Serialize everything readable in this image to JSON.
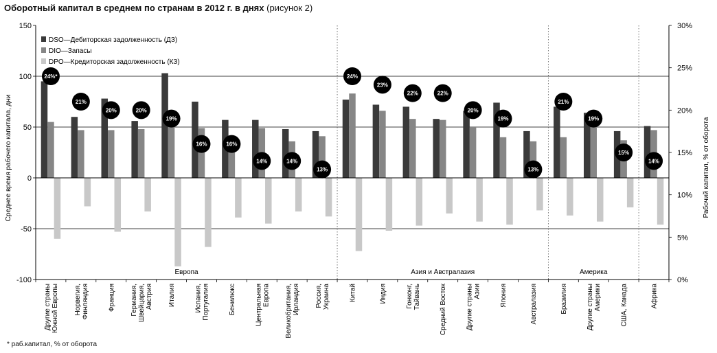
{
  "title": "Оборотный капитал в среднем по странам в 2012 г. в днях",
  "title_note": "(рисунок 2)",
  "footnote": "* раб.капитал, % от оборота",
  "chart_data": {
    "type": "bar",
    "ylabel": "Среднее время рабочего капитала, дни",
    "y2label": "Рабочий капитал, % от оборота",
    "ylim": [
      -100,
      150
    ],
    "yticks": [
      -100,
      -50,
      0,
      50,
      100,
      150
    ],
    "y2lim": [
      0,
      30
    ],
    "y2ticks": [
      "0%",
      "5%",
      "10%",
      "15%",
      "20%",
      "25%",
      "30%"
    ],
    "grid": "horizontal at 100, 50 and -50",
    "legend_position": "top-left",
    "categories": [
      "Другие страны Южной Европы",
      "Норвегия, Финляндия",
      "Франция",
      "Германия, Швейцария, Австрия",
      "Италия",
      "Испания, Португалия",
      "Бенилюкс",
      "Центральная Европа",
      "Великобритания, Ирландия",
      "Россия, Украина",
      "Китай",
      "Индия",
      "Гонконг, Тайвань",
      "Средний Восток",
      "Другие страны Азии",
      "Япония",
      "Австралазия",
      "Бразилия",
      "Другие страны Америки",
      "США, Канада",
      "Африка"
    ],
    "series": [
      {
        "name": "DSO—Дебиторская задолженность (ДЗ)",
        "color": "#3a3a3a",
        "values": [
          95,
          60,
          78,
          56,
          103,
          75,
          57,
          57,
          48,
          46,
          77,
          72,
          70,
          58,
          66,
          74,
          46,
          70,
          64,
          46,
          51
        ]
      },
      {
        "name": "DIO—Запасы",
        "color": "#868686",
        "values": [
          55,
          47,
          47,
          48,
          56,
          49,
          40,
          49,
          36,
          41,
          83,
          66,
          58,
          57,
          50,
          40,
          36,
          40,
          50,
          37,
          47
        ]
      },
      {
        "name": "DPO—Кредиторская задолженность (КЗ)",
        "color": "#c8c8c8",
        "values": [
          -60,
          -28,
          -53,
          -33,
          -87,
          -68,
          -39,
          -45,
          -33,
          -38,
          -72,
          -52,
          -47,
          -35,
          -43,
          -46,
          -32,
          -37,
          -43,
          -29,
          -46
        ]
      }
    ],
    "working_capital_pct": [
      24,
      21,
      20,
      20,
      19,
      16,
      16,
      14,
      14,
      13,
      24,
      23,
      22,
      22,
      20,
      19,
      13,
      21,
      19,
      15,
      14
    ],
    "working_capital_labels": [
      "24%*",
      "21%",
      "20%",
      "20%",
      "19%",
      "16%",
      "16%",
      "14%",
      "14%",
      "13%",
      "24%",
      "23%",
      "22%",
      "22%",
      "20%",
      "19%",
      "13%",
      "21%",
      "19%",
      "15%",
      "14%"
    ],
    "regions": [
      {
        "name": "Европа",
        "start": 0,
        "end": 9
      },
      {
        "name": "Азия и Австралазия",
        "start": 10,
        "end": 16
      },
      {
        "name": "Америка",
        "start": 17,
        "end": 19
      },
      {
        "name": "",
        "start": 20,
        "end": 20
      }
    ]
  }
}
